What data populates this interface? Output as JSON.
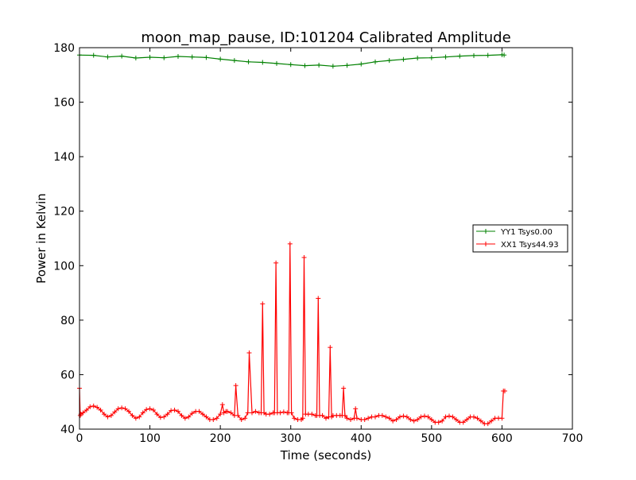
{
  "chart_data": {
    "type": "line",
    "title": "moon_map_pause, ID:101204 Calibrated Amplitude",
    "xlabel": "Time (seconds)",
    "ylabel": "Power in Kelvin",
    "xlim": [
      0,
      700
    ],
    "ylim": [
      40,
      180
    ],
    "xticks": [
      0,
      100,
      200,
      300,
      400,
      500,
      600,
      700
    ],
    "yticks": [
      40,
      60,
      80,
      100,
      120,
      140,
      160,
      180
    ],
    "xtick_labels": [
      "0",
      "100",
      "200",
      "300",
      "400",
      "500",
      "600",
      "700"
    ],
    "ytick_labels": [
      "40",
      "60",
      "80",
      "100",
      "120",
      "140",
      "160",
      "180"
    ],
    "grid": false,
    "legend_position": "right",
    "marker": "+",
    "series": [
      {
        "name": "YY1 Tsys0.00",
        "color": "#008000",
        "x": [
          0,
          20,
          40,
          60,
          80,
          100,
          120,
          140,
          160,
          180,
          200,
          220,
          240,
          260,
          280,
          300,
          320,
          340,
          360,
          380,
          400,
          420,
          440,
          460,
          480,
          500,
          520,
          540,
          560,
          580,
          600,
          603
        ],
        "y": [
          177.3,
          177.2,
          176.6,
          176.9,
          176.2,
          176.5,
          176.3,
          176.8,
          176.6,
          176.4,
          175.8,
          175.3,
          174.8,
          174.6,
          174.2,
          173.8,
          173.4,
          173.6,
          173.2,
          173.5,
          174.0,
          174.8,
          175.3,
          175.7,
          176.2,
          176.3,
          176.6,
          176.9,
          177.1,
          177.2,
          177.4,
          177.3
        ]
      },
      {
        "name": "XX1 Tsys44.93",
        "color": "#ff0000",
        "x": [
          0,
          1,
          2,
          5,
          10,
          15,
          20,
          25,
          30,
          35,
          40,
          45,
          50,
          55,
          60,
          65,
          70,
          75,
          80,
          85,
          90,
          95,
          100,
          105,
          110,
          115,
          120,
          125,
          130,
          135,
          140,
          145,
          150,
          155,
          160,
          165,
          170,
          175,
          180,
          185,
          190,
          195,
          200,
          203,
          205,
          208,
          210,
          215,
          220,
          222,
          225,
          230,
          235,
          239,
          241,
          245,
          250,
          255,
          258,
          260,
          262,
          265,
          270,
          275,
          277,
          279,
          281,
          285,
          290,
          295,
          297,
          299,
          301,
          305,
          310,
          315,
          317,
          319,
          321,
          325,
          330,
          335,
          337,
          339,
          341,
          345,
          350,
          354,
          356,
          358,
          360,
          365,
          370,
          373,
          375,
          377,
          380,
          385,
          390,
          392,
          394,
          400,
          405,
          410,
          415,
          420,
          425,
          430,
          435,
          440,
          445,
          450,
          455,
          460,
          465,
          470,
          475,
          480,
          485,
          490,
          495,
          500,
          505,
          510,
          515,
          520,
          525,
          530,
          535,
          540,
          545,
          550,
          555,
          560,
          565,
          570,
          575,
          580,
          585,
          590,
          595,
          600,
          602,
          604
        ],
        "y": [
          55,
          45,
          45.5,
          46,
          47,
          48.2,
          48.5,
          48,
          47,
          45.5,
          44.5,
          45,
          46.3,
          47.5,
          47.8,
          47.5,
          46.5,
          45,
          44,
          44.5,
          46,
          47.2,
          47.5,
          47,
          45.5,
          44.3,
          44.5,
          45.5,
          46.8,
          47,
          46.5,
          45,
          44,
          44.5,
          45.8,
          46.5,
          46.5,
          45.5,
          44.5,
          43.5,
          43.5,
          44,
          45.5,
          49,
          46,
          46.5,
          46.5,
          46,
          45,
          56,
          45,
          43.5,
          44,
          46,
          68,
          46,
          46.5,
          46,
          46,
          86,
          46,
          45.5,
          45.5,
          46,
          46,
          101,
          46,
          46,
          46.3,
          46,
          46,
          108,
          46,
          44,
          43.5,
          43.5,
          44,
          103,
          45.5,
          45.5,
          45.5,
          45,
          45,
          88,
          45,
          45,
          44,
          44.5,
          70,
          44.5,
          45,
          45,
          45,
          45,
          55,
          45,
          44,
          43.5,
          44,
          47.5,
          44,
          43.5,
          43.5,
          44,
          44.5,
          44.5,
          45,
          45,
          44.5,
          44,
          43,
          43.5,
          44.5,
          44.8,
          44.5,
          43.5,
          43,
          43.5,
          44.5,
          44.8,
          44.5,
          43.5,
          42.5,
          42.5,
          43,
          44.5,
          44.8,
          44.5,
          43.5,
          42.5,
          42.5,
          43.5,
          44.5,
          44.5,
          44,
          43,
          42,
          42,
          43,
          44,
          44,
          44,
          54,
          54
        ]
      }
    ]
  }
}
